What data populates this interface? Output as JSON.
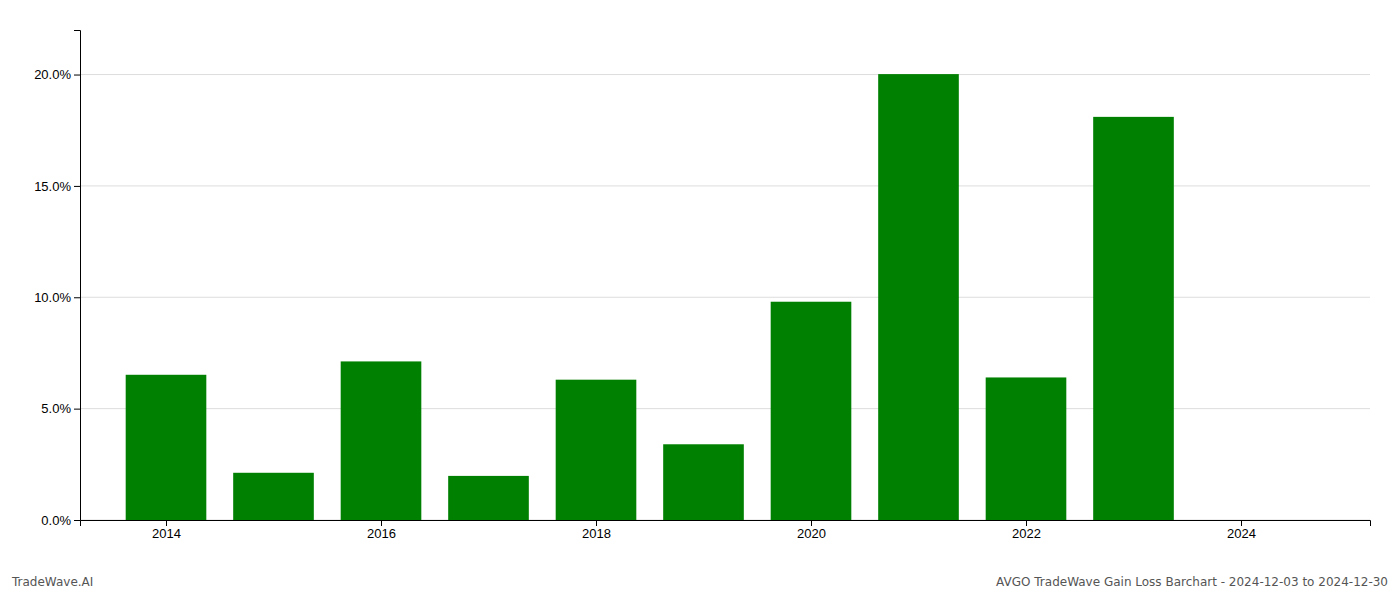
{
  "chart_data": {
    "type": "bar",
    "x": [
      2014,
      2015,
      2016,
      2017,
      2018,
      2019,
      2020,
      2021,
      2022,
      2023,
      2024
    ],
    "values": [
      6.52,
      2.12,
      7.12,
      1.98,
      6.3,
      3.4,
      9.8,
      20.02,
      6.4,
      18.1,
      0.0
    ],
    "color": "#008000",
    "xlim": [
      2013.2,
      2025.2
    ],
    "xticks": [
      2014,
      2016,
      2018,
      2020,
      2022,
      2024
    ],
    "ylim": [
      0,
      22
    ],
    "yticks": [
      {
        "value": 0,
        "label": "0.0%"
      },
      {
        "value": 5,
        "label": "5.0%"
      },
      {
        "value": 10,
        "label": "10.0%"
      },
      {
        "value": 15,
        "label": "15.0%"
      },
      {
        "value": 20,
        "label": "20.0%"
      }
    ],
    "grid": true,
    "annotations": [
      "TradeWave.AI",
      "AVGO TradeWave Gain Loss Barchart - 2024-12-03 to 2024-12-30"
    ]
  }
}
